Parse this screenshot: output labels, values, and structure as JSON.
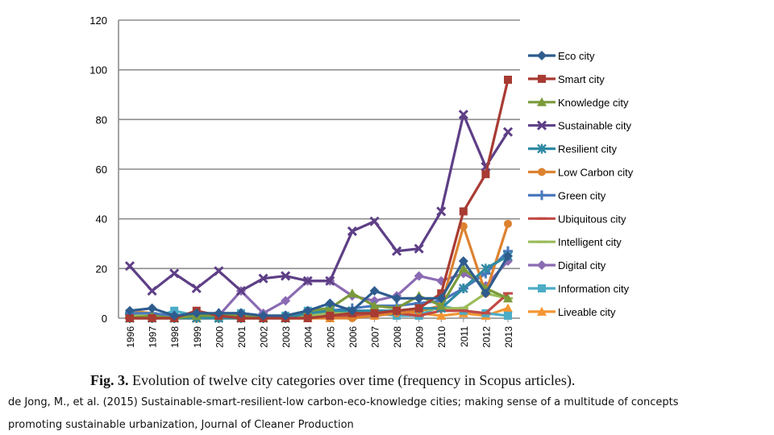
{
  "caption": {
    "label": "Fig. 3.",
    "text": "Evolution of twelve city categories over time (frequency in Scopus articles)."
  },
  "citation": {
    "line1": "de Jong, M., et al. (2015) Sustainable-smart-resilient-low carbon-eco-knowledge cities; making sense of a multitude of concepts",
    "line2": "promoting sustainable urbanization, Journal of Cleaner Production"
  },
  "chart_data": {
    "type": "line",
    "title": "",
    "xlabel": "",
    "ylabel": "",
    "ylim": [
      0,
      120
    ],
    "yticks": [
      0,
      20,
      40,
      60,
      80,
      100,
      120
    ],
    "grid": "horizontal",
    "legend": "right",
    "categories": [
      "1996",
      "1997",
      "1998",
      "1999",
      "2000",
      "2001",
      "2002",
      "2003",
      "2004",
      "2005",
      "2006",
      "2007",
      "2008",
      "2009",
      "2010",
      "2011",
      "2012",
      "2013"
    ],
    "series": [
      {
        "name": "Eco city",
        "color": "#2e5c8e",
        "marker": "diamond",
        "values": [
          3,
          4,
          1,
          2,
          2,
          2,
          1,
          1,
          3,
          6,
          3,
          11,
          8,
          8,
          8,
          23,
          10,
          25
        ]
      },
      {
        "name": "Smart city",
        "color": "#a83b33",
        "marker": "square",
        "values": [
          0,
          0,
          0,
          3,
          1,
          0,
          0,
          0,
          0,
          1,
          2,
          2,
          3,
          4,
          10,
          43,
          58,
          96
        ]
      },
      {
        "name": "Knowledge city",
        "color": "#7a9a3a",
        "marker": "triangle",
        "values": [
          0,
          1,
          0,
          1,
          1,
          1,
          0,
          1,
          3,
          4,
          10,
          5,
          4,
          9,
          5,
          20,
          12,
          8
        ]
      },
      {
        "name": "Sustainable city",
        "color": "#5e3f86",
        "marker": "x",
        "values": [
          21,
          11,
          18,
          12,
          19,
          11,
          16,
          17,
          15,
          15,
          35,
          39,
          27,
          28,
          43,
          82,
          61,
          75
        ]
      },
      {
        "name": "Resilient city",
        "color": "#2f8aa3",
        "marker": "asterisk",
        "values": [
          0,
          0,
          0,
          0,
          0,
          0,
          0,
          0,
          2,
          3,
          3,
          3,
          3,
          4,
          4,
          12,
          20,
          25
        ]
      },
      {
        "name": "Low Carbon city",
        "color": "#dd8230",
        "marker": "circle",
        "values": [
          0,
          0,
          0,
          0,
          0,
          0,
          0,
          0,
          0,
          0,
          0,
          1,
          2,
          3,
          5,
          37,
          10,
          38
        ]
      },
      {
        "name": "Green city",
        "color": "#4a78be",
        "marker": "plus",
        "values": [
          2,
          2,
          1,
          1,
          2,
          2,
          1,
          1,
          2,
          3,
          4,
          5,
          5,
          6,
          7,
          12,
          18,
          27
        ]
      },
      {
        "name": "Ubiquitous city",
        "color": "#c14a44",
        "marker": "dash",
        "values": [
          0,
          0,
          0,
          0,
          0,
          0,
          0,
          0,
          0,
          1,
          1,
          1,
          2,
          1,
          3,
          3,
          2,
          10
        ]
      },
      {
        "name": "Intelligent city",
        "color": "#9bbb59",
        "marker": "dash",
        "values": [
          1,
          1,
          1,
          1,
          1,
          1,
          1,
          1,
          1,
          2,
          2,
          2,
          3,
          3,
          4,
          4,
          10,
          8
        ]
      },
      {
        "name": "Digital city",
        "color": "#8b6bb3",
        "marker": "diamond",
        "values": [
          0,
          1,
          1,
          1,
          1,
          11,
          2,
          7,
          15,
          15,
          9,
          7,
          9,
          17,
          15,
          18,
          13,
          23
        ]
      },
      {
        "name": "Information city",
        "color": "#4bacc6",
        "marker": "square",
        "values": [
          2,
          0,
          3,
          1,
          0,
          2,
          1,
          1,
          3,
          4,
          1,
          2,
          1,
          1,
          5,
          3,
          2,
          1
        ]
      },
      {
        "name": "Liveable city",
        "color": "#f39633",
        "marker": "triangle",
        "values": [
          3,
          2,
          0,
          0,
          2,
          1,
          1,
          0,
          0,
          0,
          1,
          1,
          3,
          2,
          1,
          2,
          1,
          4
        ]
      }
    ]
  }
}
